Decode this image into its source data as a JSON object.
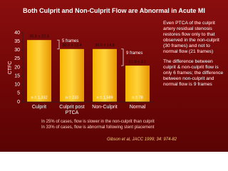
{
  "chart_data": {
    "type": "bar",
    "title": "Both Culprit and Non-Culprit Flow are Abnormal in Acute MI",
    "y_label": "CTFC",
    "categories": [
      "Culprit",
      "Culprit post PTCA",
      "Non-Culprit",
      "Normal"
    ],
    "values": [
      35.8,
      30.6,
      30.6,
      21.0
    ],
    "value_labels": [
      "35.8 ± 22.3",
      "30.6 ± 13.4",
      "30.6 ± 14.8",
      "21.0 ± 3.1"
    ],
    "sample_labels": [
      "n = 1,332",
      "n = 233",
      "n = 1,589",
      "n = 78"
    ],
    "annotations": [
      "5 frames",
      "9 frames"
    ],
    "ylim": [
      0,
      40
    ],
    "yticks": [
      0,
      5,
      10,
      15,
      20,
      25,
      30,
      35,
      40
    ]
  },
  "notes": [
    "Even PTCA of the culprit artery residual stenosis restores flow only to that observed in the non-culprit (30 frames) and not to normal flow (21 frames)",
    "The difference between culprit & non-culprit flow is only 6 frames; the difference between non-culprit and normal flow is 9 frames"
  ],
  "footer": [
    "In 25% of cases, flow is slower in the non-culprit than culprit",
    "In 33% of cases, flow is abnormal following stent placement"
  ],
  "citation": "Gibson et al, JACC 1999; 34: 974-82"
}
